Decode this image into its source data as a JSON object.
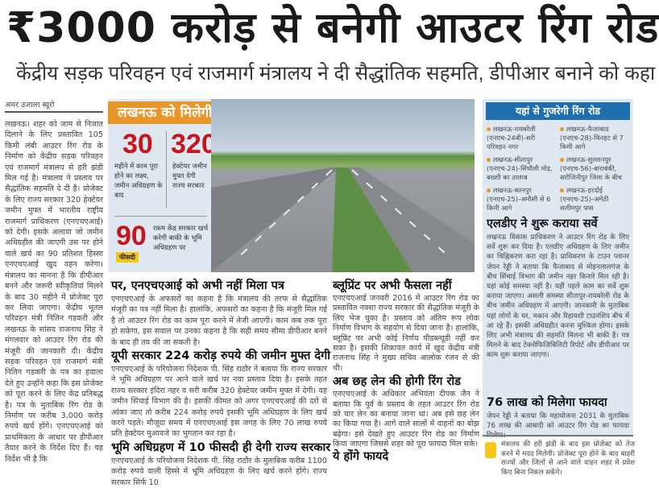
{
  "headline": "₹3000 करोड़ से बनेगी आउटर रिंग रोड",
  "subheadline": "केंद्रीय सड़क परिवहन एवं राजमार्ग मंत्रालय ने दी सैद्धांतिक सहमति, डीपीआर बनाने को कहा",
  "byline": "अमर उजाला ब्यूरो",
  "left_column": "लखनऊ। शहर को जाम से निजात दिलाने के लिए प्रस्तावित 105 किमी लंबी आउटर रिंग रोड के निर्माण को केंद्रीय सड़क परिवहन एवं राजमार्ग मंत्रालय से हरी झंडी मिल गई है। मंत्रालय ने प्रस्ताव पर सैद्धांतिक सहमति दे दी है। प्रोजेक्ट के लिए राज्य सरकार 320 हेक्टेयर जमीन मुफ्त में भारतीय राष्ट्रीय राजमार्ग प्राधिकरण (एनएचएआई) को देगी। इसके अलावा जो जमीन अधिग्रहीत की जाएगी उस पर होने वाले खर्च का 90 प्रतिशत हिस्सा एनएचएआई खुद वहन करेगा। मंत्रालय का मानना है कि डीपीआर बनने और जरूरी स्वीकृतियां मिलने के बाद 30 महीने में प्रोजेक्ट पूरा कर लिया जाएगा। केंद्रीय भूतल परिवहन मंत्री नितिन गडकरी और लखनऊ के सांसद राजनाथ सिंह ने मंगलवार को आउटर रिंग रोड की मंजूरी की जानकारी दी। केंद्रीय सड़क परिवहन एवं राजमार्ग मंत्री नितिन गडकरी के पत्र का हवाला देते हुए उन्होंने कहा कि इस प्रोजेक्ट को पूरा करने के लिए केंद्र प्रतिबद्ध है। पत्र के मुताबिक रिंग रोड के निर्माण पर करीब 3,000 करोड़ रुपये खर्च होंगे। एनएचएआई को प्राथमिकता के आधार पर डीपीआर तैयार करने के निर्देश दिए हैं। यह निर्देश भी है कि",
  "infographic": {
    "title": "लखनऊ को मिलेगी सौगात",
    "stats": [
      {
        "value": "30",
        "text": "महीने में काम पूरा होने का लक्ष्य, जमीन अधिग्रहण के बाद"
      },
      {
        "value": "320",
        "text": "हेक्टेयर जमीन मुफ्त देगी राज्य सरकार"
      },
      {
        "value": "90",
        "badge": "फीसदी",
        "text": "रकम केंद्र सरकार खर्च करेगी बाकी के भूमि अधिग्रहण पर"
      }
    ],
    "colors": {
      "title_bg": "#e8952a",
      "number": "#c4161c",
      "badge": "#f5c518"
    }
  },
  "middle_sections": [
    {
      "heading": "पर, एनएचएआई को अभी नहीं मिला पत्र",
      "text": "एनएचएआई के अफसरों का कहना है कि मंत्रालय की तरफ से सैद्धांतिक मंजूरी का पत्र नहीं मिला है। हालांकि, अफसरों का कहना है कि मंजूरी मिल गई है तो आउटर रिंग रोड का काम पूरा करने में तेजी आएगी। काम कब तक पूरा हो सकेगा, इस सवाल पर उनका कहना है कि सही समय सीमा डीपीआर बनने के बाद ही तय की जा सकती है।"
    },
    {
      "heading": "यूपी सरकार 224 करोड़ रुपये की जमीन मुफ्त देगी",
      "text": "एनएचएआई के परियोजना निदेशक पी. सिंह राठौर ने बताया कि राज्य सरकार ने भूमि अधिग्रहण पर आने वाले खर्च पर नया प्रस्ताव दिया है। इसके तहत राज्य सरकार इंदिरा नहर व सरी करीब 320 हेक्टेयर जमीन मुफ्त में देगी। यह जमीन सिंचाई विभाग की है। इसकी कीमत को अगर एनएचएआई की दरों से आंका जाए तो करीब 224 करोड़ रुपये इसकी भूमि अधिग्रहण के लिए खर्च करने पड़ते। मौजूदा समय में एनएचएआई इस जगह के लिए 70 लाख रुपये प्रति हेक्टेयर मुआवजे का भुगतान कर रहा है।"
    },
    {
      "heading": "भूमि अधिग्रहण में 10 फीसदी ही देगी राज्य सरकार",
      "text": "एनएचएआई के परियोजना निदेशक पी. सिंह राठौर के मुताबिक करीब 1100 करोड़ रुपये वाली हिस्से में भूमि अधिग्रहण के लिए खर्च करने होंगे। राज्य सरकार सिर्फ 10"
    }
  ],
  "second_sections": [
    {
      "heading": "ब्लूप्रिंट पर अभी फैसला नहीं",
      "text": "एनएचएआई जनवरी 2016 में आउटर रिंग रोड का प्रस्तावित नक्शा राज्य सरकार की सैद्धांतिक मंजूरी के लिए भेज चुका है। प्रस्ताव को अंतिम रूप लोक निर्माण विभाग के सहयोग से दिया जाना है। हालांकि, ब्लूप्रिंट पर अभी कोई निर्णय पीडब्ल्यूडी नहीं कर सका है। इसकी शिकायत कार्य में खुद केंद्रीय मंत्री राजनाथ सिंह ने मुख्य सचिव आलोक रंजन से की थी।"
    },
    {
      "heading": "अब छह लेन की होगी रिंग रोड",
      "text": "एनएचएआई के अधिकार अभियंता दीपक जैन ने बताया कि पूर्व के प्रस्ताव के तहत आउटर रिंग रोड को चार लेन का बनाया जाना था। अब इसे छह लेन का किया गया है। आगे वाले सालों में वाहनों का बोझ बढ़ेगा। इसे देखते हुए आउटर रिंग रोड का निर्माण किया जाएगा जिससे शहर को पूरा फायदा मिल सके।"
    },
    {
      "heading": "ये होंगे फायदे",
      "text": ""
    }
  ],
  "right_box": {
    "title": "यहां से गुजरेगी रिंग रोड",
    "routes": [
      "लखनऊ-रायबरेली (एनएच-24बी)-सरी परिवहन नगर",
      "लखनऊ-फैजाबाद (एनएच-28)-चिनहट से 7 किमी आगे",
      "लखनऊ-सीतापुर (एनएच-24)-सिंधौली मोड़, बख्शी का तालाब",
      "लखनऊ-सुल्तानपुर (एनएच-56)-बाराबंकी, सरोजिनीपुर जिला के बीच",
      "लखनऊ-कानपुर (एनएच-25)-अमौसी से 6 किमी आगे",
      "लखनऊ-हरदोई (एनएच-25)-अमेठी सलीमपुर पास"
    ],
    "heading1": "एलडीए ने शुरू कराया सर्वे",
    "text1": "लखनऊ विकास प्राधिकरण ने आउटर रिंग रोड के लिए सर्वे शुरू कर दिया है। एलडीए अधिग्रहण के लिए जमीन का चिह्निकरण करा रहा है। प्राधिकरण के टाउन प्लानर जेपन रेड्डी ने बताया कि फैजाबाद से मोहनलालगंज के बीच सिंचाई विभाग की जमीन नहर किनारे मिल रही है। यहां कोई समस्या नहीं है। यहीं पहले काम का सर्वे शुरू कराया जाएगा। असली समस्या सीतापुर-रायबरेली रोड के बीच जमीन अधिग्रहण में आएगी। जानकारी के मुताबिक यहां लोगों के घर, मकान और रिहायशी टाउनशिप बीच में आ रहे हैं। इसकी अधिग्रहीत करना मुश्किल होगा। इसके लिए अभी मंत्रालय की सहमति मिलना भी बाकी है। पत्र मिलने के बाद टेक्नोफिजिबिलिटी रिपोर्ट और डीपीआर पर काम शुरू कराया जाएगा।",
    "heading2": "76 लाख को मिलेगा फायदा",
    "text2": "जेपन रेड्डी ने बताया कि महायोजना 2031 के मुताबिक 76 लाख की आबादी को आउटर रिंग रोड का फायदा मिलेगा।",
    "colors": {
      "bg": "#dfe8f1",
      "title_bg": "#1f6fb0"
    }
  },
  "quote": "मंत्रालय की हरी झंडी के बाद इस प्रोजेक्ट को तेज करने में मदद मिलेगी। प्रोजेक्ट पूरा होने के बाद बाहरी राज्यों और जिलों से आने वाले वाहन शहर में प्रवेश किए बिना निकल सकेंगे।"
}
